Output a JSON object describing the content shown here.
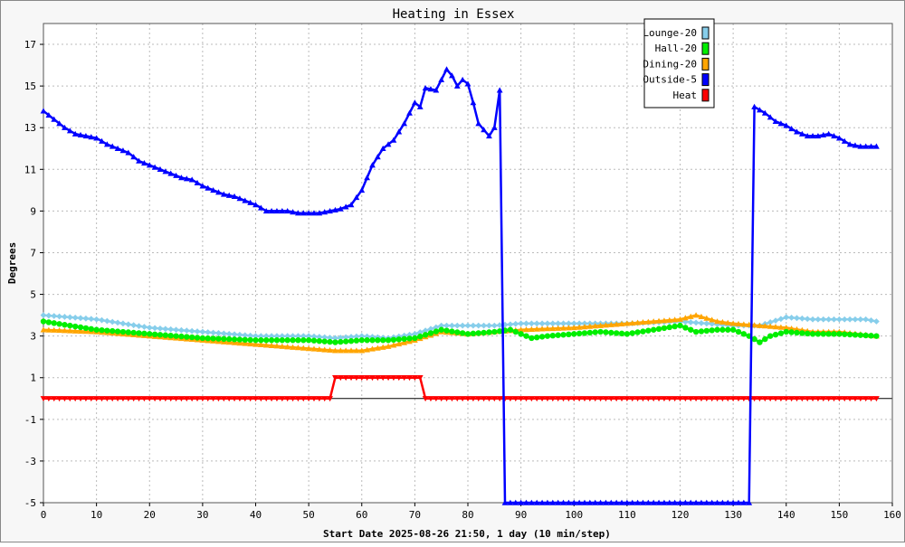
{
  "chart_data": {
    "type": "line",
    "title": "Heating in Essex",
    "xlabel": "Start Date 2025-08-26 21:50, 1 day (10 min/step)",
    "ylabel": "Degrees",
    "xlim": [
      0,
      160
    ],
    "ylim": [
      -5,
      18
    ],
    "x_ticks": [
      0,
      10,
      20,
      30,
      40,
      50,
      60,
      70,
      80,
      90,
      100,
      110,
      120,
      130,
      140,
      150,
      160
    ],
    "y_ticks": [
      -5,
      -3,
      -1,
      1,
      3,
      5,
      7,
      9,
      11,
      13,
      15,
      17
    ],
    "grid": true,
    "legend_position": "top-right",
    "series": [
      {
        "name": "Lounge-20",
        "color": "#87ceeb",
        "marker": "diamond",
        "points": [
          [
            0,
            4.0
          ],
          [
            10,
            3.8
          ],
          [
            20,
            3.4
          ],
          [
            30,
            3.2
          ],
          [
            40,
            3.0
          ],
          [
            50,
            3.0
          ],
          [
            55,
            2.9
          ],
          [
            60,
            3.0
          ],
          [
            65,
            2.9
          ],
          [
            70,
            3.1
          ],
          [
            75,
            3.5
          ],
          [
            80,
            3.5
          ],
          [
            85,
            3.5
          ],
          [
            90,
            3.6
          ],
          [
            100,
            3.6
          ],
          [
            110,
            3.6
          ],
          [
            120,
            3.7
          ],
          [
            125,
            3.6
          ],
          [
            130,
            3.5
          ],
          [
            135,
            3.5
          ],
          [
            140,
            3.9
          ],
          [
            145,
            3.8
          ],
          [
            150,
            3.8
          ],
          [
            155,
            3.8
          ],
          [
            157,
            3.7
          ]
        ]
      },
      {
        "name": "Hall-20",
        "color": "#00ee00",
        "marker": "circle",
        "points": [
          [
            0,
            3.7
          ],
          [
            10,
            3.3
          ],
          [
            20,
            3.1
          ],
          [
            30,
            2.9
          ],
          [
            40,
            2.8
          ],
          [
            50,
            2.8
          ],
          [
            55,
            2.7
          ],
          [
            60,
            2.8
          ],
          [
            65,
            2.8
          ],
          [
            70,
            2.9
          ],
          [
            75,
            3.3
          ],
          [
            80,
            3.1
          ],
          [
            85,
            3.2
          ],
          [
            88,
            3.3
          ],
          [
            92,
            2.9
          ],
          [
            95,
            3.0
          ],
          [
            100,
            3.1
          ],
          [
            105,
            3.2
          ],
          [
            110,
            3.1
          ],
          [
            115,
            3.3
          ],
          [
            120,
            3.5
          ],
          [
            123,
            3.2
          ],
          [
            127,
            3.3
          ],
          [
            130,
            3.3
          ],
          [
            133,
            3.0
          ],
          [
            135,
            2.7
          ],
          [
            137,
            3.0
          ],
          [
            140,
            3.2
          ],
          [
            145,
            3.1
          ],
          [
            150,
            3.1
          ],
          [
            157,
            3.0
          ]
        ]
      },
      {
        "name": "Dining-20",
        "color": "#ffa500",
        "marker": "triangle",
        "points": [
          [
            0,
            3.3
          ],
          [
            10,
            3.2
          ],
          [
            20,
            3.0
          ],
          [
            30,
            2.8
          ],
          [
            40,
            2.6
          ],
          [
            50,
            2.4
          ],
          [
            55,
            2.3
          ],
          [
            60,
            2.3
          ],
          [
            65,
            2.5
          ],
          [
            70,
            2.8
          ],
          [
            75,
            3.2
          ],
          [
            80,
            3.1
          ],
          [
            85,
            3.2
          ],
          [
            90,
            3.3
          ],
          [
            100,
            3.4
          ],
          [
            110,
            3.6
          ],
          [
            120,
            3.8
          ],
          [
            123,
            4.0
          ],
          [
            127,
            3.7
          ],
          [
            130,
            3.6
          ],
          [
            135,
            3.5
          ],
          [
            140,
            3.4
          ],
          [
            145,
            3.2
          ],
          [
            150,
            3.2
          ],
          [
            157,
            3.0
          ]
        ]
      },
      {
        "name": "Outside-5",
        "color": "#0000ff",
        "marker": "triangle",
        "points": [
          [
            0,
            13.8
          ],
          [
            2,
            13.4
          ],
          [
            4,
            13.0
          ],
          [
            6,
            12.7
          ],
          [
            8,
            12.6
          ],
          [
            10,
            12.5
          ],
          [
            12,
            12.2
          ],
          [
            14,
            12.0
          ],
          [
            16,
            11.8
          ],
          [
            18,
            11.4
          ],
          [
            20,
            11.2
          ],
          [
            22,
            11.0
          ],
          [
            24,
            10.8
          ],
          [
            26,
            10.6
          ],
          [
            28,
            10.5
          ],
          [
            30,
            10.2
          ],
          [
            32,
            10.0
          ],
          [
            34,
            9.8
          ],
          [
            36,
            9.7
          ],
          [
            38,
            9.5
          ],
          [
            40,
            9.3
          ],
          [
            42,
            9.0
          ],
          [
            44,
            9.0
          ],
          [
            46,
            9.0
          ],
          [
            48,
            8.9
          ],
          [
            50,
            8.9
          ],
          [
            52,
            8.9
          ],
          [
            54,
            9.0
          ],
          [
            56,
            9.1
          ],
          [
            58,
            9.3
          ],
          [
            60,
            10.0
          ],
          [
            62,
            11.2
          ],
          [
            64,
            12.0
          ],
          [
            66,
            12.4
          ],
          [
            68,
            13.2
          ],
          [
            70,
            14.2
          ],
          [
            71,
            14.0
          ],
          [
            72,
            14.9
          ],
          [
            74,
            14.8
          ],
          [
            75,
            15.3
          ],
          [
            76,
            15.8
          ],
          [
            77,
            15.5
          ],
          [
            78,
            15.0
          ],
          [
            79,
            15.3
          ],
          [
            80,
            15.1
          ],
          [
            81,
            14.2
          ],
          [
            82,
            13.2
          ],
          [
            83,
            12.9
          ],
          [
            84,
            12.6
          ],
          [
            85,
            13.0
          ],
          [
            86,
            14.8
          ],
          [
            87,
            -5.0
          ],
          [
            90,
            -5.0
          ],
          [
            100,
            -5.0
          ],
          [
            110,
            -5.0
          ],
          [
            120,
            -5.0
          ],
          [
            130,
            -5.0
          ],
          [
            133,
            -5.0
          ],
          [
            134,
            14.0
          ],
          [
            136,
            13.7
          ],
          [
            138,
            13.3
          ],
          [
            140,
            13.1
          ],
          [
            142,
            12.8
          ],
          [
            144,
            12.6
          ],
          [
            146,
            12.6
          ],
          [
            148,
            12.7
          ],
          [
            150,
            12.5
          ],
          [
            152,
            12.2
          ],
          [
            154,
            12.1
          ],
          [
            157,
            12.1
          ]
        ]
      },
      {
        "name": "Heat",
        "color": "#ff0000",
        "marker": "triangle-down",
        "points": [
          [
            0,
            0
          ],
          [
            54,
            0
          ],
          [
            55,
            1
          ],
          [
            71,
            1
          ],
          [
            72,
            0
          ],
          [
            157,
            0
          ]
        ]
      }
    ]
  }
}
